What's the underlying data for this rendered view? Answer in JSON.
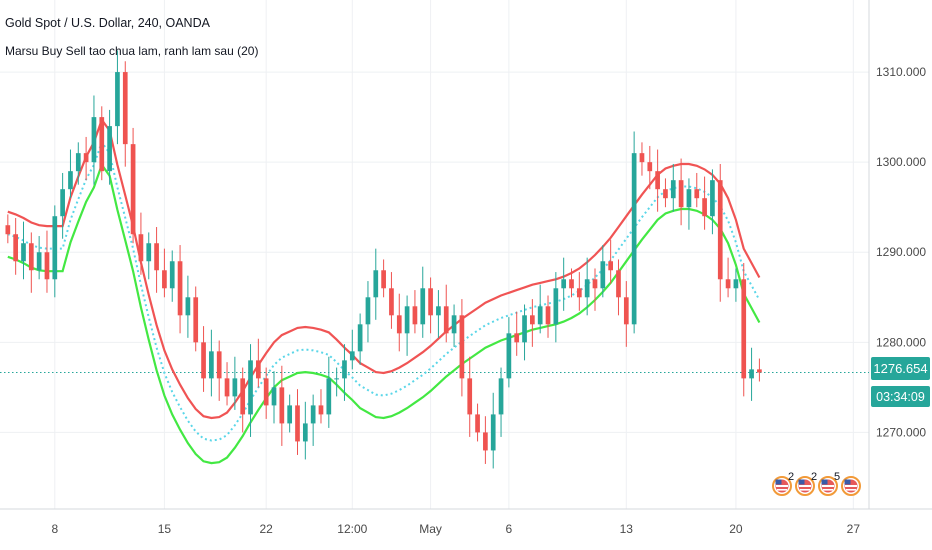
{
  "header": {
    "title": "Gold Spot / U.S. Dollar, 240, OANDA",
    "indicator": "Marsu Buy Sell tao chua lam, ranh lam sau (20)"
  },
  "price_badges": {
    "last_price": "1276.654",
    "countdown": "03:34:09",
    "last_price_color": "#26a69a",
    "countdown_color": "#26a69a"
  },
  "event_markers": [
    {
      "icon": "us-flag-icon",
      "count": "2"
    },
    {
      "icon": "us-flag-icon",
      "count": "2"
    },
    {
      "icon": "us-flag-icon",
      "count": "5"
    },
    {
      "icon": "us-flag-icon",
      "count": ""
    }
  ],
  "chart_data": {
    "type": "candlestick",
    "ylim": [
      1261.5,
      1318.0
    ],
    "y_ticks": [
      "1310.000",
      "1300.000",
      "1290.000",
      "1280.000",
      "1270.000"
    ],
    "y_tick_values": [
      1310,
      1300,
      1290,
      1280,
      1270
    ],
    "x_ticks": [
      {
        "label": "8",
        "i": 6
      },
      {
        "label": "15",
        "i": 20
      },
      {
        "label": "22",
        "i": 33
      },
      {
        "label": "12:00",
        "i": 44
      },
      {
        "label": "May",
        "i": 54
      },
      {
        "label": "6",
        "i": 64
      },
      {
        "label": "13",
        "i": 79
      },
      {
        "label": "20",
        "i": 93
      },
      {
        "label": "27",
        "i": 108
      }
    ],
    "x_range": [
      -1,
      110
    ],
    "current_price": 1276.654,
    "colors": {
      "up": "#26a69a",
      "down": "#ef5350",
      "upper_band": "#f05454",
      "lower_band": "#43e843",
      "mid_band": "#5ad6e8",
      "price_line": "#26a69a"
    },
    "closes": [
      1292,
      1289,
      1291,
      1288,
      1290,
      1287,
      1294,
      1297,
      1299,
      1301,
      1300,
      1305,
      1299,
      1304,
      1310,
      1302,
      1292,
      1289,
      1291,
      1288,
      1286,
      1289,
      1283,
      1285,
      1280,
      1276,
      1279,
      1276,
      1274,
      1276,
      1272,
      1278,
      1276,
      1273,
      1275,
      1271,
      1273,
      1269,
      1271,
      1273,
      1272,
      1276,
      1276,
      1278,
      1279,
      1282,
      1285,
      1288,
      1286,
      1283,
      1281,
      1284,
      1282,
      1286,
      1283,
      1284,
      1281,
      1283,
      1276,
      1272,
      1270,
      1268,
      1272,
      1276,
      1281,
      1280,
      1283,
      1282,
      1284,
      1282,
      1286,
      1287,
      1286,
      1285,
      1287,
      1286,
      1289,
      1288,
      1285,
      1282,
      1301,
      1300,
      1299,
      1297,
      1296,
      1298,
      1295,
      1297,
      1296,
      1294,
      1298,
      1287,
      1286,
      1287,
      1276,
      1277,
      1276.654
    ],
    "upper_band": [
      1294.5,
      1294.2,
      1293.8,
      1293.3,
      1293.0,
      1292.9,
      1292.9,
      1292.9,
      1296.1,
      1298.4,
      1300.6,
      1302.2,
      1304.7,
      1303.5,
      1299.7,
      1296.3,
      1292.9,
      1288.9,
      1285.3,
      1281.9,
      1279.1,
      1277.0,
      1275.3,
      1273.8,
      1272.6,
      1271.8,
      1271.6,
      1271.7,
      1272.2,
      1273.3,
      1274.6,
      1276.1,
      1277.5,
      1278.8,
      1280.0,
      1280.8,
      1281.2,
      1281.6,
      1281.7,
      1281.6,
      1281.4,
      1281.1,
      1280.3,
      1279.4,
      1278.6,
      1277.7,
      1277.2,
      1276.7,
      1276.6,
      1276.8,
      1277.2,
      1277.7,
      1278.3,
      1278.9,
      1279.6,
      1280.4,
      1281.2,
      1281.9,
      1282.6,
      1283.2,
      1283.8,
      1284.4,
      1284.8,
      1285.2,
      1285.5,
      1285.8,
      1286.1,
      1286.4,
      1286.6,
      1286.8,
      1287.0,
      1287.3,
      1287.7,
      1288.2,
      1288.9,
      1289.7,
      1290.6,
      1291.6,
      1292.8,
      1294.0,
      1295.2,
      1296.4,
      1297.5,
      1298.6,
      1299.3,
      1299.6,
      1299.8,
      1299.8,
      1299.6,
      1299.2,
      1298.6,
      1297.6,
      1296.0,
      1293.6,
      1290.4,
      1288.8,
      1287.2
    ],
    "lower_band": [
      1289.5,
      1289.2,
      1288.8,
      1288.3,
      1288.0,
      1287.9,
      1287.9,
      1287.9,
      1291.1,
      1293.4,
      1295.6,
      1297.2,
      1299.7,
      1298.5,
      1294.7,
      1291.3,
      1287.9,
      1283.9,
      1280.3,
      1276.9,
      1274.1,
      1272.0,
      1270.3,
      1268.8,
      1267.6,
      1266.8,
      1266.6,
      1266.7,
      1267.2,
      1268.3,
      1269.6,
      1271.1,
      1272.5,
      1273.8,
      1275.0,
      1275.8,
      1276.2,
      1276.6,
      1276.7,
      1276.6,
      1276.4,
      1276.1,
      1275.3,
      1274.4,
      1273.6,
      1272.7,
      1272.2,
      1271.7,
      1271.6,
      1271.8,
      1272.2,
      1272.7,
      1273.3,
      1273.9,
      1274.6,
      1275.4,
      1276.2,
      1276.9,
      1277.6,
      1278.2,
      1278.8,
      1279.4,
      1279.8,
      1280.2,
      1280.5,
      1280.8,
      1281.1,
      1281.4,
      1281.6,
      1281.8,
      1282.0,
      1282.3,
      1282.7,
      1283.2,
      1283.9,
      1284.7,
      1285.6,
      1286.6,
      1287.8,
      1289.0,
      1290.2,
      1291.4,
      1292.5,
      1293.6,
      1294.3,
      1294.6,
      1294.8,
      1294.8,
      1294.6,
      1294.2,
      1293.6,
      1292.6,
      1291.0,
      1288.6,
      1285.4,
      1283.8,
      1282.2
    ]
  }
}
